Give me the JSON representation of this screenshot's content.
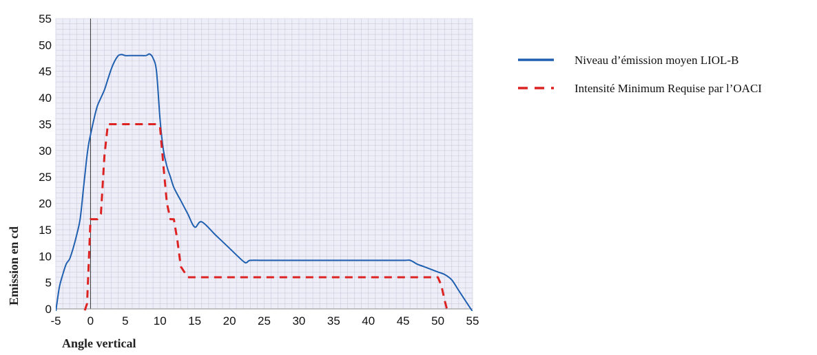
{
  "chart_data": {
    "type": "line",
    "xlabel": "Angle vertical",
    "ylabel": "Emission en cd",
    "xlim": [
      -5,
      55
    ],
    "ylim": [
      0,
      55
    ],
    "x_ticks": [
      -5,
      0,
      5,
      10,
      15,
      20,
      25,
      30,
      35,
      40,
      45,
      50,
      55
    ],
    "y_ticks": [
      0,
      5,
      10,
      15,
      20,
      25,
      30,
      35,
      40,
      45,
      50,
      55
    ],
    "grid": true,
    "legend_placement": "right",
    "series": [
      {
        "name": "Niveau d’émission moyen LIOL-B",
        "color": "#1f5fb0",
        "style": "solid",
        "x": [
          -5,
          -4.5,
          -4,
          -3.5,
          -3,
          -2.5,
          -2,
          -1.5,
          -1,
          -0.6,
          -0.3,
          0,
          0.5,
          1,
          1.5,
          2,
          2.5,
          3,
          3.5,
          4,
          4.5,
          5,
          6,
          7,
          8,
          8.5,
          9,
          9.5,
          10,
          10.5,
          11,
          11.5,
          12,
          13,
          14,
          15,
          16,
          18,
          20,
          22,
          22.5,
          23,
          25,
          30,
          35,
          40,
          45,
          46,
          47,
          48,
          50,
          51,
          52,
          53,
          54,
          55
        ],
        "y": [
          -0.5,
          4,
          6.5,
          8.5,
          9.5,
          11.5,
          14,
          17,
          23,
          28,
          31,
          33,
          36,
          38.5,
          40,
          41.5,
          43.5,
          45.5,
          47,
          48,
          48.2,
          48,
          48,
          48,
          48,
          48.3,
          47.5,
          45,
          36,
          30,
          27,
          25,
          23,
          20.5,
          18,
          15.5,
          16.5,
          14,
          11.5,
          9,
          8.8,
          9.2,
          9.2,
          9.2,
          9.2,
          9.2,
          9.2,
          9.2,
          8.5,
          8,
          7,
          6.5,
          5.5,
          3.5,
          1.5,
          -0.5
        ]
      },
      {
        "name": "Intensité Minimum Requise par l’OACI",
        "color": "#dd2222",
        "style": "dashed",
        "x": [
          -4.2,
          -1,
          -0.5,
          0,
          1,
          1.5,
          2,
          2.5,
          5,
          9.5,
          10,
          10.5,
          11,
          11.5,
          12,
          12.5,
          13,
          14,
          20,
          30,
          40,
          50,
          50.5,
          51,
          51.5,
          54.5
        ],
        "y": [
          -1,
          -1,
          1,
          17,
          17,
          18,
          29,
          35,
          35,
          35,
          34.5,
          27,
          20,
          17,
          17,
          13,
          8,
          6,
          6,
          6,
          6,
          6,
          4.5,
          1.5,
          -1,
          -1
        ]
      }
    ]
  }
}
